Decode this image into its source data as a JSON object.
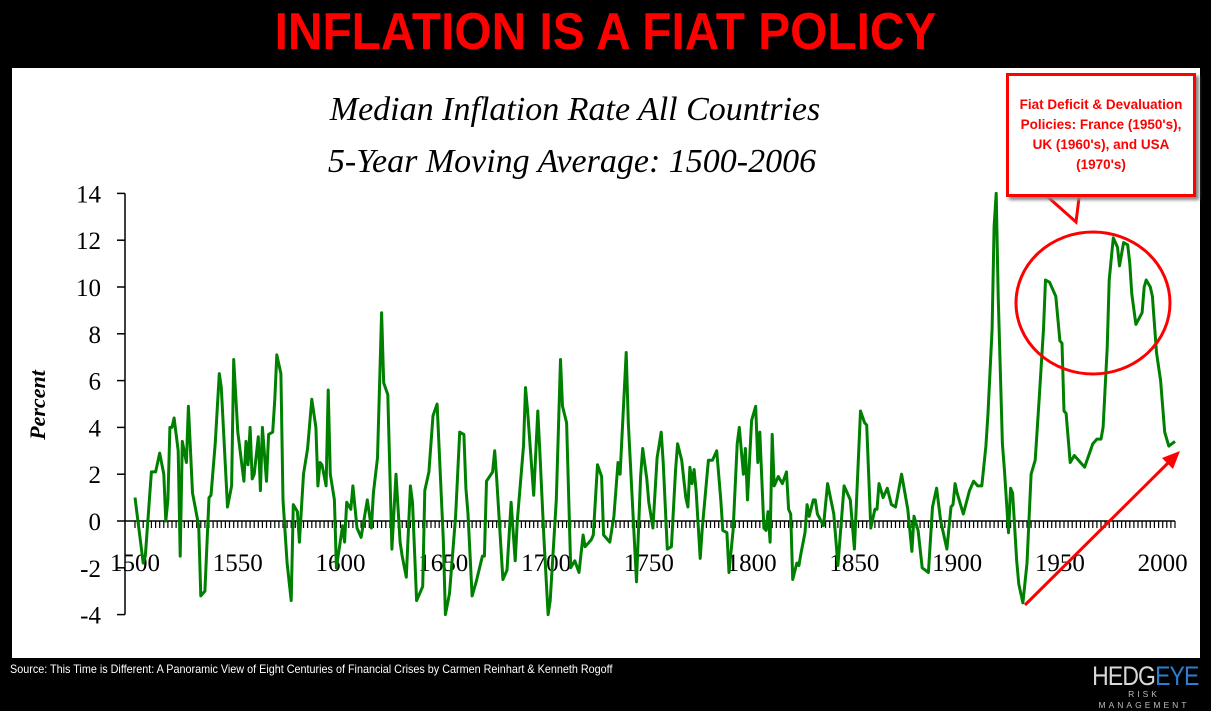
{
  "headline": "INFLATION IS A FIAT POLICY",
  "source": "Source: This Time is Different: A Panoramic View of Eight Centuries of Financial Crises by Carmen Reinhart & Kenneth Rogoff",
  "logo": {
    "brand_part1": "HEDG",
    "brand_part2": "EYE",
    "tagline": "RISK MANAGEMENT"
  },
  "callout": {
    "text": "Fiat Deficit & Devaluation Policies: France (1950's), UK (1960's), and USA (1970's)"
  },
  "colors": {
    "headline": "#ff0000",
    "series": "#008000",
    "annotation": "#ff0000",
    "background": "#000000",
    "panel": "#ffffff"
  },
  "chart_data": {
    "type": "line",
    "title": "Median Inflation Rate All Countries",
    "subtitle": "5-Year Moving Average: 1500-2006",
    "xlabel": "",
    "ylabel": "Percent",
    "xlim": [
      1500,
      2006
    ],
    "ylim": [
      -4,
      14
    ],
    "x_ticks": [
      1500,
      1550,
      1600,
      1650,
      1700,
      1750,
      1800,
      1850,
      1900,
      1950,
      2000
    ],
    "y_ticks": [
      14,
      12,
      10,
      8,
      6,
      4,
      2,
      0,
      -2,
      -4
    ],
    "grid": false,
    "legend": "none",
    "series": [
      {
        "points": [
          [
            1500,
            1.0
          ],
          [
            1504,
            -1.8
          ],
          [
            1505,
            -1.5
          ],
          [
            1508,
            2.1
          ],
          [
            1510,
            2.1
          ],
          [
            1512,
            2.9
          ],
          [
            1514,
            2.0
          ],
          [
            1515,
            0
          ],
          [
            1516,
            0.9
          ],
          [
            1517,
            4.0
          ],
          [
            1518,
            4.0
          ],
          [
            1519,
            4.4
          ],
          [
            1521,
            3.0
          ],
          [
            1522,
            -1.5
          ],
          [
            1523,
            3.4
          ],
          [
            1525,
            2.5
          ],
          [
            1526,
            4.9
          ],
          [
            1528,
            1.2
          ],
          [
            1531,
            -0.2
          ],
          [
            1532,
            -3.2
          ],
          [
            1534,
            -3.0
          ],
          [
            1536,
            1.0
          ],
          [
            1537,
            1.1
          ],
          [
            1539,
            3.3
          ],
          [
            1541,
            6.3
          ],
          [
            1542,
            5.7
          ],
          [
            1545,
            0.6
          ],
          [
            1547,
            1.5
          ],
          [
            1548,
            6.9
          ],
          [
            1550,
            3.8
          ],
          [
            1553,
            1.7
          ],
          [
            1554,
            3.4
          ],
          [
            1555,
            2.4
          ],
          [
            1556,
            4.0
          ],
          [
            1557,
            1.8
          ],
          [
            1558,
            2.0
          ],
          [
            1560,
            3.6
          ],
          [
            1561,
            1.3
          ],
          [
            1562,
            4.0
          ],
          [
            1564,
            1.7
          ],
          [
            1565,
            3.7
          ],
          [
            1567,
            3.8
          ],
          [
            1568,
            5.2
          ],
          [
            1569,
            7.1
          ],
          [
            1571,
            6.3
          ],
          [
            1572,
            0.9
          ],
          [
            1574,
            -1.8
          ],
          [
            1576,
            -3.4
          ],
          [
            1577,
            0.7
          ],
          [
            1579,
            0.4
          ],
          [
            1580,
            -0.9
          ],
          [
            1582,
            2.0
          ],
          [
            1584,
            3.1
          ],
          [
            1586,
            5.2
          ],
          [
            1588,
            4.0
          ],
          [
            1589,
            1.5
          ],
          [
            1590,
            2.5
          ],
          [
            1591,
            2.4
          ],
          [
            1593,
            1.5
          ],
          [
            1594,
            5.6
          ],
          [
            1595,
            2.0
          ],
          [
            1597,
            0.9
          ],
          [
            1598,
            -2.0
          ],
          [
            1601,
            -0.2
          ],
          [
            1602,
            -0.9
          ],
          [
            1603,
            0.8
          ],
          [
            1605,
            0.5
          ],
          [
            1606,
            1.5
          ],
          [
            1608,
            -0.3
          ],
          [
            1610,
            -0.7
          ],
          [
            1613,
            0.9
          ],
          [
            1615,
            -0.3
          ],
          [
            1616,
            1.2
          ],
          [
            1618,
            2.7
          ],
          [
            1620,
            8.9
          ],
          [
            1621,
            5.9
          ],
          [
            1623,
            5.4
          ],
          [
            1625,
            -1.2
          ],
          [
            1627,
            2.0
          ],
          [
            1629,
            -0.9
          ],
          [
            1630,
            -1.5
          ],
          [
            1632,
            -2.4
          ],
          [
            1634,
            1.5
          ],
          [
            1635,
            0.8
          ],
          [
            1637,
            -3.4
          ],
          [
            1640,
            -2.8
          ],
          [
            1641,
            1.3
          ],
          [
            1643,
            2.1
          ],
          [
            1645,
            4.5
          ],
          [
            1647,
            5.0
          ],
          [
            1650,
            -0.8
          ],
          [
            1651,
            -4.0
          ],
          [
            1653,
            -3.1
          ],
          [
            1656,
            0.2
          ],
          [
            1658,
            3.8
          ],
          [
            1660,
            3.7
          ],
          [
            1661,
            1.4
          ],
          [
            1662,
            0.3
          ],
          [
            1664,
            -3.2
          ],
          [
            1666,
            -2.6
          ],
          [
            1669,
            -1.5
          ],
          [
            1670,
            -1.5
          ],
          [
            1671,
            1.7
          ],
          [
            1674,
            2.1
          ],
          [
            1675,
            3.0
          ],
          [
            1676,
            1.8
          ],
          [
            1679,
            -2.5
          ],
          [
            1681,
            -2.1
          ],
          [
            1683,
            0.8
          ],
          [
            1685,
            -1.7
          ],
          [
            1686,
            0
          ],
          [
            1689,
            3.2
          ],
          [
            1690,
            5.7
          ],
          [
            1691,
            4.7
          ],
          [
            1694,
            1.1
          ],
          [
            1696,
            4.7
          ],
          [
            1697,
            2.9
          ],
          [
            1699,
            -0.8
          ],
          [
            1701,
            -4.0
          ],
          [
            1702,
            -3.4
          ],
          [
            1705,
            0.9
          ],
          [
            1707,
            6.9
          ],
          [
            1708,
            4.9
          ],
          [
            1710,
            4.2
          ],
          [
            1712,
            -2.0
          ],
          [
            1714,
            -1.7
          ],
          [
            1716,
            -2.2
          ],
          [
            1718,
            -0.6
          ],
          [
            1719,
            -1.1
          ],
          [
            1722,
            -0.8
          ],
          [
            1723,
            -0.6
          ],
          [
            1725,
            2.4
          ],
          [
            1727,
            1.9
          ],
          [
            1728,
            -0.6
          ],
          [
            1731,
            -0.9
          ],
          [
            1733,
            0.2
          ],
          [
            1735,
            2.5
          ],
          [
            1736,
            2.0
          ],
          [
            1739,
            7.2
          ],
          [
            1740,
            4.2
          ],
          [
            1742,
            0.8
          ],
          [
            1744,
            -2.6
          ],
          [
            1746,
            1.9
          ],
          [
            1747,
            3.1
          ],
          [
            1749,
            1.8
          ],
          [
            1750,
            0.8
          ],
          [
            1752,
            -0.3
          ],
          [
            1754,
            2.7
          ],
          [
            1756,
            3.8
          ],
          [
            1757,
            2.5
          ],
          [
            1759,
            -1.2
          ],
          [
            1761,
            -1.1
          ],
          [
            1763,
            2.2
          ],
          [
            1764,
            3.3
          ],
          [
            1766,
            2.6
          ],
          [
            1768,
            1.0
          ],
          [
            1769,
            0.6
          ],
          [
            1770,
            2.3
          ],
          [
            1771,
            1.6
          ],
          [
            1772,
            2.2
          ],
          [
            1773,
            1.3
          ],
          [
            1775,
            -1.6
          ],
          [
            1776,
            -0.3
          ],
          [
            1779,
            2.6
          ],
          [
            1781,
            2.6
          ],
          [
            1783,
            3.0
          ],
          [
            1785,
            0.9
          ],
          [
            1786,
            -0.4
          ],
          [
            1788,
            -0.5
          ],
          [
            1789,
            -2.2
          ],
          [
            1791,
            -0.4
          ],
          [
            1793,
            3.3
          ],
          [
            1794,
            4.0
          ],
          [
            1796,
            2.0
          ],
          [
            1797,
            3.1
          ],
          [
            1798,
            0.9
          ],
          [
            1800,
            4.3
          ],
          [
            1802,
            4.9
          ],
          [
            1803,
            2.5
          ],
          [
            1804,
            3.8
          ],
          [
            1806,
            -0.3
          ],
          [
            1807,
            -0.4
          ],
          [
            1808,
            0.4
          ],
          [
            1809,
            -0.9
          ],
          [
            1810,
            3.7
          ],
          [
            1811,
            1.5
          ],
          [
            1813,
            1.9
          ],
          [
            1815,
            1.6
          ],
          [
            1817,
            2.1
          ],
          [
            1818,
            0.5
          ],
          [
            1819,
            0.3
          ],
          [
            1820,
            -2.5
          ],
          [
            1822,
            -1.8
          ],
          [
            1823,
            -1.9
          ],
          [
            1824,
            -1.4
          ],
          [
            1826,
            -0.5
          ],
          [
            1827,
            0.7
          ],
          [
            1828,
            0.2
          ],
          [
            1830,
            0.9
          ],
          [
            1831,
            0.9
          ],
          [
            1832,
            0.3
          ],
          [
            1835,
            -0.2
          ],
          [
            1837,
            1.6
          ],
          [
            1840,
            0.3
          ],
          [
            1842,
            -1.9
          ],
          [
            1845,
            1.5
          ],
          [
            1848,
            0.9
          ],
          [
            1850,
            -1.2
          ],
          [
            1853,
            4.7
          ],
          [
            1855,
            4.2
          ],
          [
            1856,
            4.1
          ],
          [
            1858,
            -0.3
          ],
          [
            1860,
            0.5
          ],
          [
            1861,
            0.5
          ],
          [
            1862,
            1.6
          ],
          [
            1864,
            1.0
          ],
          [
            1866,
            1.4
          ],
          [
            1868,
            0.7
          ],
          [
            1870,
            0.6
          ],
          [
            1873,
            2.0
          ],
          [
            1876,
            0.5
          ],
          [
            1878,
            -1.3
          ],
          [
            1879,
            0.2
          ],
          [
            1881,
            -0.4
          ],
          [
            1883,
            -2.0
          ],
          [
            1886,
            -2.2
          ],
          [
            1888,
            0.6
          ],
          [
            1890,
            1.4
          ],
          [
            1892,
            0
          ],
          [
            1895,
            -1.2
          ],
          [
            1897,
            0.6
          ],
          [
            1898,
            0.7
          ],
          [
            1899,
            1.6
          ],
          [
            1900,
            1.2
          ],
          [
            1903,
            0.3
          ],
          [
            1906,
            1.3
          ],
          [
            1908,
            1.7
          ],
          [
            1910,
            1.5
          ],
          [
            1912,
            1.5
          ],
          [
            1914,
            3.2
          ],
          [
            1915,
            4.6
          ],
          [
            1917,
            8.2
          ],
          [
            1918,
            12.6
          ],
          [
            1919,
            14.0
          ],
          [
            1920,
            9.6
          ],
          [
            1922,
            3.3
          ],
          [
            1923,
            2.2
          ],
          [
            1925,
            -0.5
          ],
          [
            1926,
            1.4
          ],
          [
            1927,
            1.2
          ],
          [
            1929,
            -1.7
          ],
          [
            1930,
            -2.7
          ],
          [
            1932,
            -3.5
          ],
          [
            1934,
            -1.8
          ],
          [
            1936,
            2.0
          ],
          [
            1938,
            2.6
          ],
          [
            1940,
            5.3
          ],
          [
            1942,
            8.2
          ],
          [
            1943,
            10.3
          ],
          [
            1945,
            10.2
          ],
          [
            1948,
            9.6
          ],
          [
            1950,
            7.7
          ],
          [
            1951,
            7.6
          ],
          [
            1952,
            4.7
          ],
          [
            1953,
            4.6
          ],
          [
            1955,
            2.5
          ],
          [
            1957,
            2.8
          ],
          [
            1960,
            2.5
          ],
          [
            1962,
            2.3
          ],
          [
            1966,
            3.3
          ],
          [
            1968,
            3.5
          ],
          [
            1970,
            3.5
          ],
          [
            1971,
            4.0
          ],
          [
            1973,
            7.4
          ],
          [
            1974,
            10.3
          ],
          [
            1976,
            12.1
          ],
          [
            1978,
            11.7
          ],
          [
            1979,
            10.9
          ],
          [
            1981,
            11.9
          ],
          [
            1983,
            11.8
          ],
          [
            1984,
            11.0
          ],
          [
            1985,
            9.7
          ],
          [
            1987,
            8.4
          ],
          [
            1990,
            8.9
          ],
          [
            1991,
            10.0
          ],
          [
            1992,
            10.3
          ],
          [
            1994,
            10.0
          ],
          [
            1995,
            9.6
          ],
          [
            1997,
            7.2
          ],
          [
            1999,
            6.0
          ],
          [
            2001,
            3.8
          ],
          [
            2003,
            3.2
          ],
          [
            2006,
            3.4
          ]
        ]
      }
    ],
    "annotations": [
      "red ellipse around 1940-2000 peaks",
      "red arrow pointing to 2006 value"
    ]
  }
}
